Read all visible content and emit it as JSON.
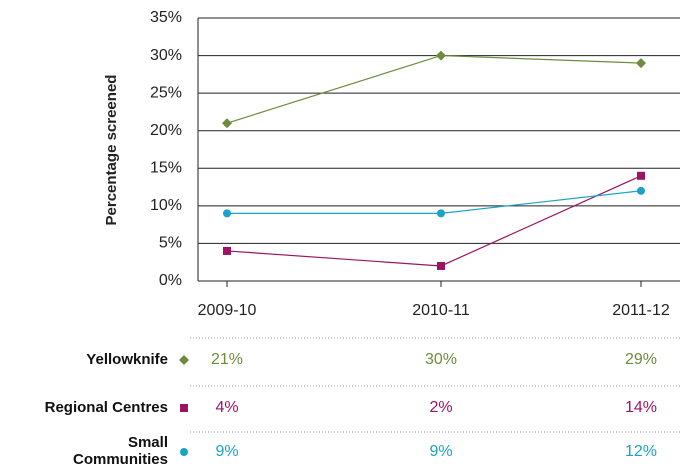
{
  "chart_data": {
    "type": "line",
    "y_label": "Percentage screened",
    "categories": [
      "2009-10",
      "2010-11",
      "2011-12"
    ],
    "series": [
      {
        "name": "Yellowknife",
        "color": "#6e8b3d",
        "marker": "diamond",
        "values": [
          21,
          30,
          29
        ],
        "value_labels": [
          "21%",
          "30%",
          "29%"
        ]
      },
      {
        "name": "Regional Centres",
        "color": "#9c1464",
        "marker": "square",
        "values": [
          4,
          2,
          14
        ],
        "value_labels": [
          "4%",
          "2%",
          "14%"
        ]
      },
      {
        "name": "Small Communities",
        "color": "#1ba3c6",
        "marker": "circle",
        "values": [
          9,
          9,
          12
        ],
        "value_labels": [
          "9%",
          "9%",
          "12%"
        ]
      }
    ],
    "ylim": [
      0,
      35
    ],
    "yticks": [
      {
        "value": 0,
        "label": "0%"
      },
      {
        "value": 5,
        "label": "5%"
      },
      {
        "value": 10,
        "label": "10%"
      },
      {
        "value": 15,
        "label": "15%"
      },
      {
        "value": 20,
        "label": "20%"
      },
      {
        "value": 25,
        "label": "25%"
      },
      {
        "value": 30,
        "label": "30%"
      },
      {
        "value": 35,
        "label": "35%"
      }
    ],
    "grid": true
  }
}
